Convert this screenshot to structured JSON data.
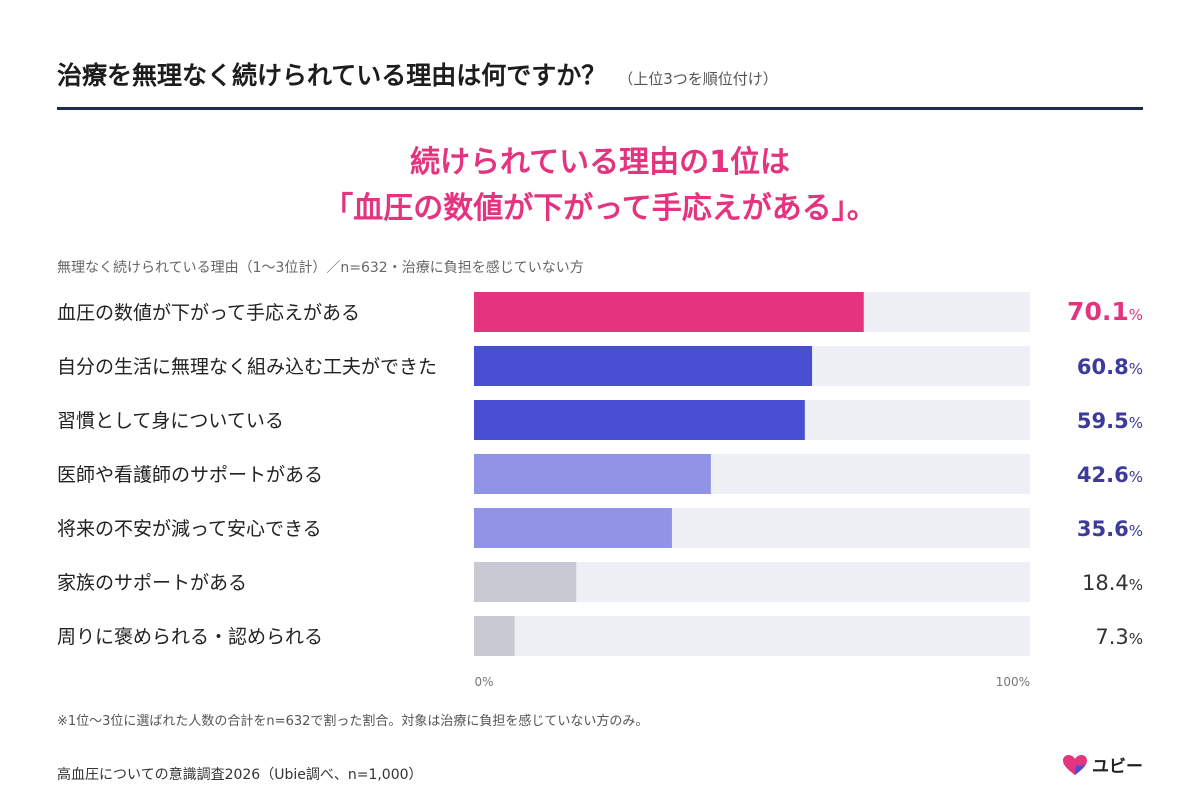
{
  "header": {
    "title": "治療を無理なく続けられている理由は何ですか？",
    "subtitle": "（上位3つを順位付け）"
  },
  "headline": {
    "line1": "続けられている理由の1位は",
    "line2": "「血圧の数値が下がって手応えがある」。"
  },
  "note": "無理なく続けられている理由（1〜3位計）／n=632・治療に負担を感じていない方",
  "chart_data": {
    "type": "bar",
    "orientation": "horizontal",
    "unit": "%",
    "xlim": [
      0,
      100
    ],
    "axis_ticks": [
      "0%",
      "100%"
    ],
    "categories": [
      "血圧の数値が下がって手応えがある",
      "自分の生活に無理なく組み込む工夫ができた",
      "習慣として身についている",
      "医師や看護師のサポートがある",
      "将来の不安が減って安心できる",
      "家族のサポートがある",
      "周りに褒められる・認められる"
    ],
    "values": [
      70.1,
      60.8,
      59.5,
      42.6,
      35.6,
      18.4,
      7.3
    ],
    "value_labels": [
      "70.1",
      "60.8",
      "59.5",
      "42.6",
      "35.6",
      "18.4",
      "7.3"
    ],
    "bar_colors": [
      "#e5347f",
      "#4a4ed3",
      "#4a4ed3",
      "#9193e6",
      "#9193e6",
      "#c9c9d4",
      "#c9c9d4"
    ],
    "label_colors": [
      "#e5347f",
      "#3d3a9a",
      "#3d3a9a",
      "#3d3a9a",
      "#3d3a9a",
      "#333333",
      "#333333"
    ],
    "track_color": "#efeff6",
    "grid": false
  },
  "footnote": "※1位〜3位に選ばれた人数の合計をn=632で割った割合。対象は治療に負担を感じていない方のみ。",
  "source": "高血圧についての意識調査2026（Ubie調べ、n=1,000）",
  "logo": {
    "text": "ユビー",
    "icon": "heart-logo-icon",
    "colors": [
      "#e5347f",
      "#4a4ed3"
    ]
  }
}
